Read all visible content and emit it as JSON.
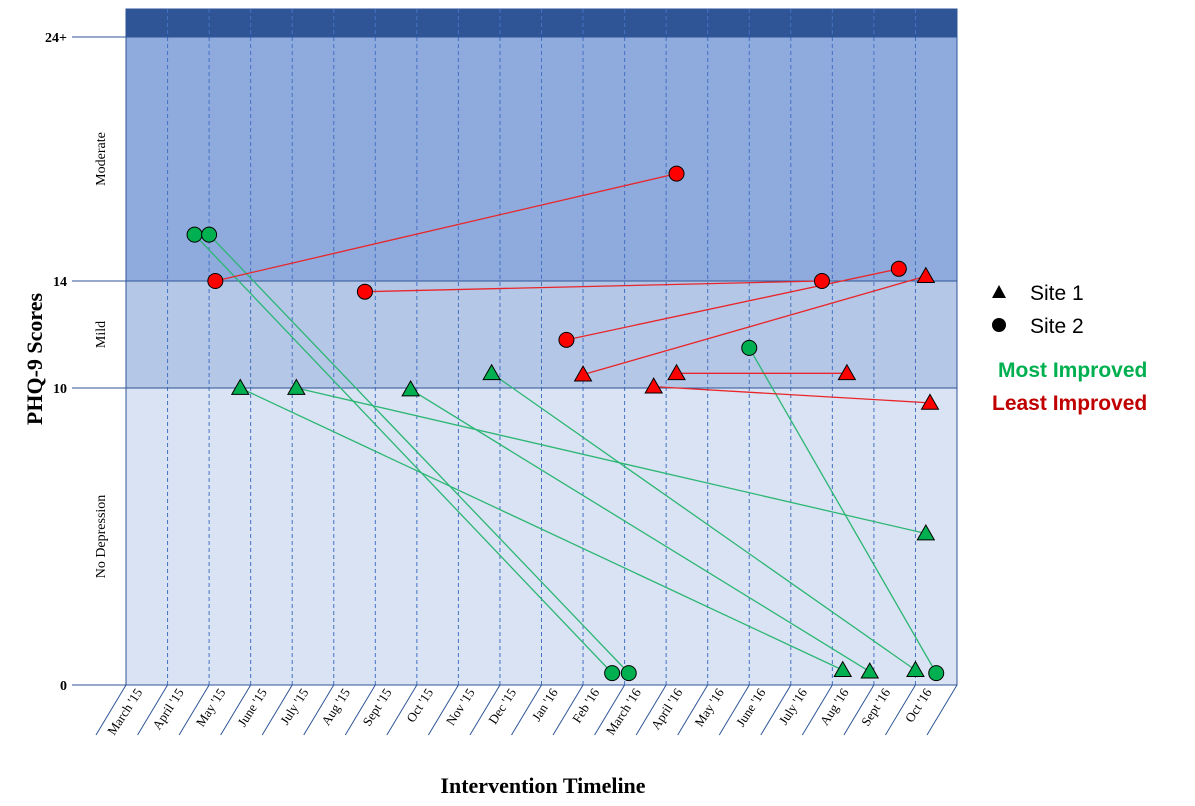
{
  "chart_data": {
    "type": "scatter",
    "xlabel": "Intervention Timeline",
    "ylabel": "PHQ-9 Scores",
    "categories": [
      "March '15",
      "April '15",
      "May '15",
      "June '15",
      "July '15",
      "Aug '15",
      "Sept '15",
      "Oct '15",
      "Nov '15",
      "Dec '15",
      "Jan '16",
      "Feb '16",
      "March '16",
      "April '16",
      "May '16",
      "June '16",
      "July '16",
      "Aug '16",
      "Sept '16",
      "Oct '16"
    ],
    "yticks": [
      {
        "value": 0,
        "label": "0"
      },
      {
        "value": 10,
        "label": "10"
      },
      {
        "value": 14,
        "label": "14"
      },
      {
        "value": 24,
        "label": "24+"
      }
    ],
    "ylim": [
      0,
      25
    ],
    "bands": [
      {
        "label": "No Depression",
        "from": 0,
        "to": 10,
        "color": "#dae3f3"
      },
      {
        "label": "Mild",
        "from": 10,
        "to": 14,
        "color": "#b4c7e7"
      },
      {
        "label": "Moderate",
        "from": 14,
        "to": 24,
        "color": "#8faadc"
      },
      {
        "label": "",
        "from": 24,
        "to": 25,
        "color": "#2f5597"
      }
    ],
    "colors": {
      "most_improved": "#00b050",
      "least_improved": "#ff0000",
      "most_line": "#2bb673",
      "least_line": "#e8262a"
    },
    "legend": [
      {
        "label": "Site 1",
        "marker": "triangle-icon"
      },
      {
        "label": "Site 2",
        "marker": "circle-icon"
      },
      {
        "label": "Most Improved",
        "color": "#00b050"
      },
      {
        "label": "Least Improved",
        "color": "#c00000"
      }
    ],
    "series": [
      {
        "group": "most",
        "site": 2,
        "start": [
          0.65,
          15.9
        ],
        "end": [
          10.7,
          0.4
        ]
      },
      {
        "group": "most",
        "site": 2,
        "start": [
          1.0,
          15.9
        ],
        "end": [
          11.1,
          0.4
        ]
      },
      {
        "group": "most",
        "site": 1,
        "start": [
          1.75,
          10.0
        ],
        "end": [
          16.25,
          0.5
        ]
      },
      {
        "group": "most",
        "site": 1,
        "start": [
          3.1,
          10.0
        ],
        "end": [
          18.25,
          5.1
        ]
      },
      {
        "group": "most",
        "site": 1,
        "start": [
          5.85,
          9.95
        ],
        "end": [
          16.9,
          0.45
        ]
      },
      {
        "group": "most",
        "site": 1,
        "start": [
          7.8,
          10.55
        ],
        "end": [
          18.0,
          0.5
        ]
      },
      {
        "group": "most",
        "site": 2,
        "start": [
          14.0,
          11.5
        ],
        "end": [
          18.5,
          0.4
        ]
      },
      {
        "group": "least",
        "site": 2,
        "start": [
          1.15,
          14.0
        ],
        "end": [
          12.25,
          18.4
        ]
      },
      {
        "group": "least",
        "site": 2,
        "start": [
          4.75,
          13.6
        ],
        "end": [
          15.75,
          14.0
        ]
      },
      {
        "group": "least",
        "site": 2,
        "start": [
          9.6,
          11.8
        ],
        "end": [
          17.6,
          14.5
        ]
      },
      {
        "group": "least",
        "site": 1,
        "start": [
          10.0,
          10.5
        ],
        "end": [
          18.25,
          14.2
        ]
      },
      {
        "group": "least",
        "site": 1,
        "start": [
          12.25,
          10.55
        ],
        "end": [
          16.35,
          10.55
        ]
      },
      {
        "group": "least",
        "site": 1,
        "start": [
          11.7,
          10.05
        ],
        "end": [
          18.35,
          9.5
        ]
      }
    ]
  }
}
